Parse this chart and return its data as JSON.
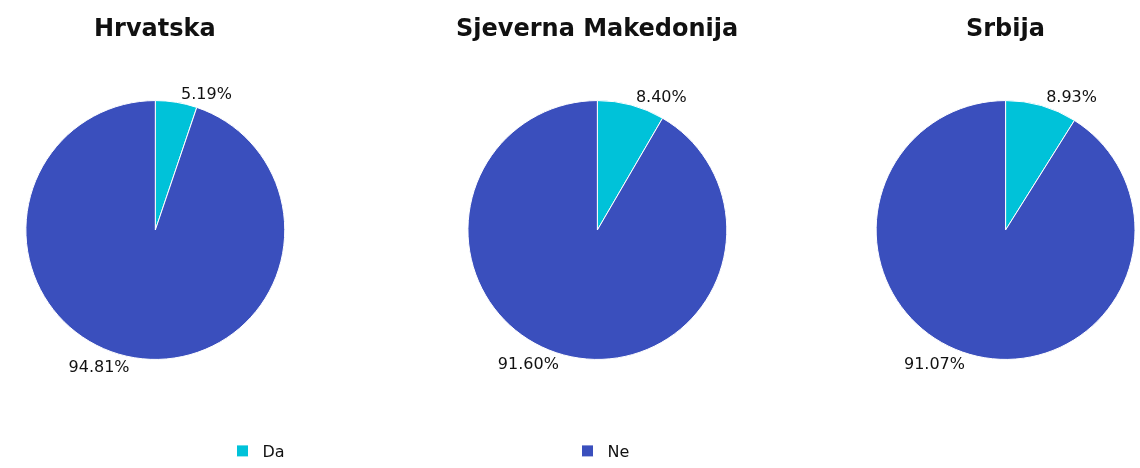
{
  "chart_data": [
    {
      "type": "pie",
      "title": "Hrvatska",
      "categories": [
        "Da",
        "Ne"
      ],
      "values": [
        5.19,
        94.81
      ],
      "value_labels": [
        "5.19%",
        "94.81%"
      ],
      "colors": [
        "#00c2d9",
        "#3a4fbd"
      ],
      "legend": "bottom"
    },
    {
      "type": "pie",
      "title": "Sjeverna Makedonija",
      "categories": [
        null,
        null
      ],
      "values": [
        8.4,
        91.6
      ],
      "value_labels": [
        "8.40%",
        "91.60%"
      ],
      "colors": [
        "#00c2d9",
        "#3a4fbd"
      ]
    },
    {
      "type": "pie",
      "title": "Srbija",
      "categories": [
        null,
        null
      ],
      "values": [
        8.93,
        91.07
      ],
      "value_labels": [
        "8.93%",
        "91.07%"
      ],
      "colors": [
        "#00c2d9",
        "#3a4fbd"
      ]
    }
  ]
}
